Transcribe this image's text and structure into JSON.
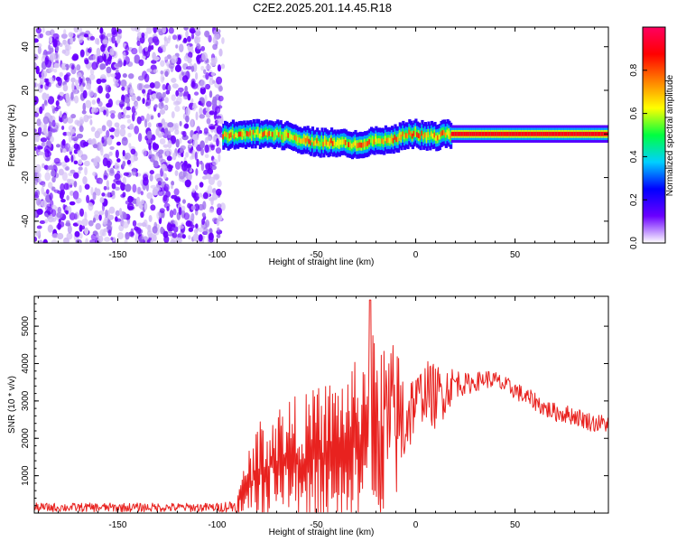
{
  "title": "C2E2.2025.201.14.45.R18",
  "colors": {
    "snr_line": "#e8221f",
    "axis": "#000000",
    "colormap": [
      "#ffffff",
      "#6a00ff",
      "#0000ff",
      "#00d0ff",
      "#00ff40",
      "#ffff00",
      "#ff8000",
      "#ff0000",
      "#ff0060"
    ]
  },
  "chart_data": [
    {
      "type": "heatmap",
      "xlabel": "Height of straight line (km)",
      "ylabel": "Frequency (Hz)",
      "xlim": [
        -192,
        97
      ],
      "ylim": [
        -50,
        49
      ],
      "xticks": [
        -150,
        -100,
        -50,
        0,
        50
      ],
      "yticks": [
        -40,
        -20,
        0,
        20,
        40
      ],
      "colorbar": {
        "label": "Normalized spectral amplitude",
        "range": [
          0.0,
          1.0
        ],
        "ticks": [
          "0.0",
          "0.2",
          "0.4",
          "0.6",
          "0.8"
        ],
        "tick_values": [
          0.0,
          0.2,
          0.4,
          0.6,
          0.8
        ]
      },
      "regions": [
        {
          "name": "noise",
          "x_range": [
            -192,
            -97
          ],
          "y_range": [
            -50,
            49
          ],
          "amplitude": 0.1
        },
        {
          "name": "signal",
          "x_range": [
            -97,
            97
          ],
          "amplitude_range": [
            0.3,
            1.0
          ]
        }
      ],
      "signal_center": {
        "x": [
          -97,
          -90,
          -80,
          -70,
          -60,
          -50,
          -40,
          -30,
          -20,
          -15,
          -10,
          -5,
          0,
          5,
          10,
          15,
          20,
          40,
          60,
          80,
          97
        ],
        "y": [
          -1,
          0,
          0,
          0,
          -2,
          -4,
          -4,
          -5,
          -3,
          -3,
          -2,
          0,
          0,
          -1,
          -1,
          0,
          0,
          0,
          0,
          0,
          0
        ]
      }
    },
    {
      "type": "line",
      "xlabel": "Height of straight line (km)",
      "ylabel": "SNR (10 * v/v)",
      "xlim": [
        -192,
        97
      ],
      "ylim": [
        0,
        5800
      ],
      "xticks": [
        -150,
        -100,
        -50,
        0,
        50
      ],
      "yticks": [
        1000,
        2000,
        3000,
        4000,
        5000
      ],
      "series": [
        {
          "x": [
            -192,
            -100,
            -90,
            -85,
            -80,
            -75,
            -70,
            -65,
            -60,
            -55,
            -50,
            -45,
            -40,
            -35,
            -30,
            -25,
            -23,
            -20,
            -15,
            -10,
            -5,
            0,
            5,
            10,
            15,
            20,
            25,
            30,
            35,
            40,
            45,
            50,
            55,
            60,
            65,
            70,
            75,
            80,
            85,
            90,
            97
          ],
          "mean": [
            150,
            150,
            200,
            700,
            1000,
            1200,
            1300,
            1400,
            1450,
            1400,
            1500,
            1600,
            1700,
            1800,
            1900,
            2100,
            2300,
            2200,
            2300,
            2400,
            2600,
            3000,
            3300,
            3100,
            3300,
            3500,
            3450,
            3500,
            3600,
            3550,
            3400,
            3300,
            3100,
            3000,
            2800,
            2700,
            2650,
            2600,
            2500,
            2400,
            2400
          ],
          "amp": [
            120,
            120,
            200,
            900,
            1400,
            1500,
            1600,
            1700,
            1700,
            1800,
            1900,
            1900,
            2000,
            2000,
            2200,
            2400,
            2600,
            2500,
            2400,
            2200,
            1500,
            700,
            800,
            900,
            700,
            400,
            300,
            250,
            250,
            250,
            250,
            250,
            250,
            250,
            250,
            250,
            250,
            250,
            250,
            250,
            250
          ],
          "peak": {
            "x": -23,
            "y": 5700
          }
        }
      ]
    }
  ]
}
